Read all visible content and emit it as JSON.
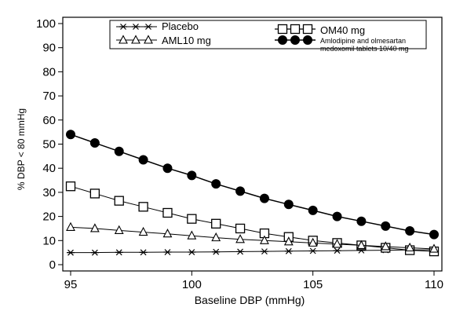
{
  "chart_data": {
    "type": "line",
    "title": "",
    "xlabel": "Baseline DBP (mmHg)",
    "ylabel": "% DBP < 80 mmHg",
    "xlim": [
      95,
      110
    ],
    "ylim": [
      0,
      100
    ],
    "x_ticks": [
      95,
      100,
      105,
      110
    ],
    "y_ticks": [
      0,
      10,
      20,
      30,
      40,
      50,
      60,
      70,
      80,
      90,
      100
    ],
    "grid": false,
    "legend_position": "top",
    "x": [
      95,
      96,
      97,
      98,
      99,
      100,
      101,
      102,
      103,
      104,
      105,
      106,
      107,
      108,
      109,
      110
    ],
    "series": [
      {
        "name": "Placebo",
        "marker": "star",
        "values": [
          5.0,
          5.0,
          5.1,
          5.1,
          5.2,
          5.2,
          5.3,
          5.4,
          5.5,
          5.6,
          5.7,
          5.8,
          5.9,
          6.0,
          6.1,
          6.2
        ]
      },
      {
        "name": "OM40 mg",
        "marker": "open-square",
        "values": [
          32.5,
          29.5,
          26.5,
          24.0,
          21.5,
          19.0,
          17.0,
          15.0,
          13.0,
          11.5,
          10.0,
          9.0,
          8.0,
          7.0,
          6.0,
          5.5
        ]
      },
      {
        "name": "AML10 mg",
        "marker": "open-triangle",
        "values": [
          15.5,
          15.0,
          14.2,
          13.5,
          12.8,
          12.0,
          11.2,
          10.5,
          10.0,
          9.5,
          9.0,
          8.5,
          8.0,
          7.5,
          7.0,
          6.5
        ]
      },
      {
        "name": "Amlodipine and olmesartan medoxomil tablets 10/40 mg",
        "marker": "filled-circle",
        "values": [
          54.0,
          50.5,
          47.0,
          43.5,
          40.0,
          37.0,
          33.5,
          30.5,
          27.5,
          25.0,
          22.5,
          20.0,
          18.0,
          16.0,
          14.0,
          12.5
        ]
      }
    ]
  },
  "legend": {
    "placebo": "Placebo",
    "om40": "OM40 mg",
    "aml10": "AML10 mg",
    "combo_line1": "Amlodipine and olmesartan",
    "combo_line2": "medoxomil tablets 10/40 mg"
  }
}
